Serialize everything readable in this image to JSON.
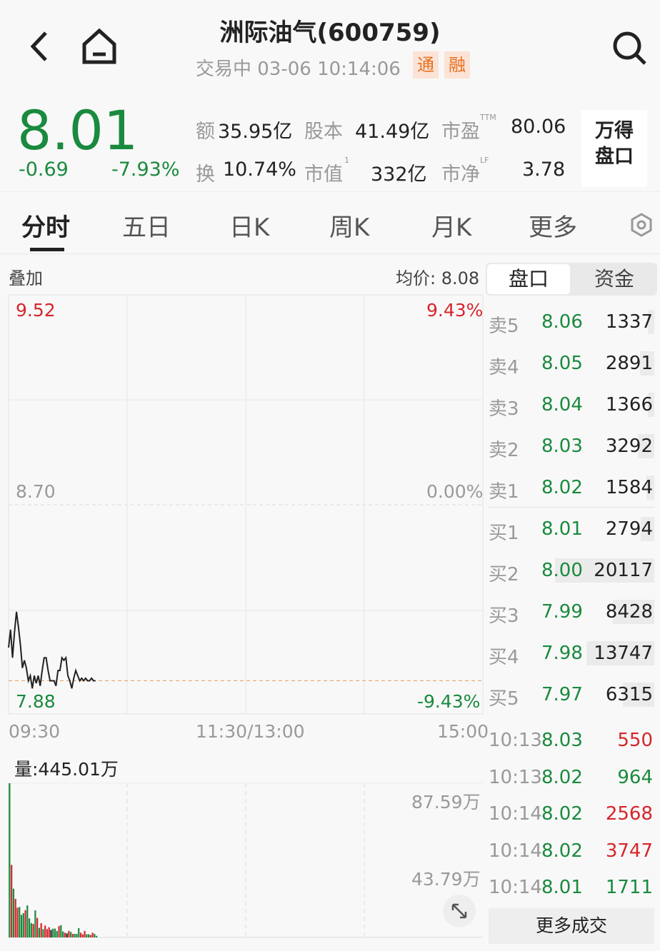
{
  "header": {
    "title": "洲际油气(600759)",
    "status": "交易中 03-06 10:14:06",
    "badges": [
      "通",
      "融"
    ]
  },
  "quote": {
    "price": "8.01",
    "change": "-0.69",
    "change_pct": "-7.93%",
    "stats": [
      {
        "label": "额",
        "value": "35.95亿"
      },
      {
        "label": "股本",
        "value": "41.49亿"
      },
      {
        "label": "市盈",
        "sup": "TTM",
        "value": "80.06"
      },
      {
        "label": "换",
        "value": "10.74%"
      },
      {
        "label": "市值",
        "sup": "1",
        "value": "332亿"
      },
      {
        "label": "市净",
        "sup": "LF",
        "value": "3.78"
      }
    ],
    "wind_button": "万得\n盘口"
  },
  "tabs": [
    "分时",
    "五日",
    "日K",
    "周K",
    "月K",
    "更多"
  ],
  "chart": {
    "overlay_label": "叠加",
    "avg_label": "均价: 8.08",
    "y_top": "9.52",
    "y_mid": "8.70",
    "y_bottom": "7.88",
    "pct_top": "9.43%",
    "pct_mid": "0.00%",
    "pct_bottom": "-9.43%",
    "x_labels": [
      "09:30",
      "11:30/13:00",
      "15:00"
    ],
    "volume_label": "量:445.01万",
    "vol_top": "87.59万",
    "vol_mid": "43.79万",
    "colors": {
      "up": "#d6262b",
      "down": "#1a8a3e",
      "line": "#222222",
      "ref": "#e8a060"
    }
  },
  "chart_data": {
    "type": "line",
    "x_range": [
      "09:30",
      "15:00"
    ],
    "ylim": [
      7.88,
      9.52
    ],
    "prev_close": 8.7,
    "current": 8.01,
    "prices": [
      8.14,
      8.21,
      8.1,
      8.2,
      8.28,
      8.22,
      8.15,
      8.06,
      8.09,
      8.06,
      8.01,
      8.03,
      7.98,
      8.03,
      8.0,
      8.03,
      7.99,
      8.05,
      8.1,
      8.1,
      8.05,
      8.01,
      8.01,
      8.01,
      7.99,
      8.05,
      8.05,
      8.1,
      8.09,
      8.1,
      8.03,
      8.01,
      7.98,
      8.02,
      8.05,
      8.03,
      8.01,
      8.02,
      8.01,
      8.02,
      8.01,
      8.01,
      8.02,
      8.01,
      8.01
    ],
    "volume_max": 87.59,
    "volumes": [
      87.59,
      41.2,
      27.7,
      21.9,
      16.9,
      17.3,
      12.8,
      13.8,
      15.5,
      18.2,
      10.8,
      8.1,
      7.7,
      15.4,
      11.1,
      5.4,
      8.1,
      4.7,
      6.8,
      4.7,
      5.8,
      4.3,
      5.0,
      5.0,
      3.7,
      6.4,
      7.0,
      3.4,
      2.7,
      2.3,
      3.7,
      3.1,
      2.0,
      2.0,
      2.0,
      5.3,
      2.7,
      1.8,
      3.7,
      1.8,
      1.8,
      1.4,
      2.7,
      2.0,
      0.9
    ],
    "volume_dir": [
      "d",
      "u",
      "d",
      "u",
      "u",
      "d",
      "d",
      "d",
      "u",
      "d",
      "d",
      "d",
      "u",
      "d",
      "u",
      "d",
      "u",
      "d",
      "u",
      "u",
      "u",
      "n",
      "d",
      "d",
      "d",
      "u",
      "d",
      "d",
      "u",
      "n",
      "u",
      "d",
      "u",
      "d",
      "d",
      "d",
      "u",
      "u",
      "u",
      "d",
      "d",
      "u",
      "u",
      "d",
      "d"
    ]
  },
  "orderbook": {
    "tabs": [
      "盘口",
      "资金"
    ],
    "asks": [
      {
        "label": "卖5",
        "price": "8.06",
        "vol": "1337"
      },
      {
        "label": "卖4",
        "price": "8.05",
        "vol": "2891"
      },
      {
        "label": "卖3",
        "price": "8.04",
        "vol": "1366"
      },
      {
        "label": "卖2",
        "price": "8.03",
        "vol": "3292"
      },
      {
        "label": "卖1",
        "price": "8.02",
        "vol": "1584"
      }
    ],
    "bids": [
      {
        "label": "买1",
        "price": "8.01",
        "vol": "2794"
      },
      {
        "label": "买2",
        "price": "8.00",
        "vol": "20117"
      },
      {
        "label": "买3",
        "price": "7.99",
        "vol": "8428"
      },
      {
        "label": "买4",
        "price": "7.98",
        "vol": "13747"
      },
      {
        "label": "买5",
        "price": "7.97",
        "vol": "6315"
      }
    ],
    "ticks": [
      {
        "time": "10:13",
        "price": "8.03",
        "vol": "550",
        "dir": "red"
      },
      {
        "time": "10:13",
        "price": "8.02",
        "vol": "964",
        "dir": "green"
      },
      {
        "time": "10:14",
        "price": "8.02",
        "vol": "2568",
        "dir": "red"
      },
      {
        "time": "10:14",
        "price": "8.02",
        "vol": "3747",
        "dir": "red"
      },
      {
        "time": "10:14",
        "price": "8.01",
        "vol": "1711",
        "dir": "green"
      }
    ],
    "more_trades": "更多成交"
  }
}
